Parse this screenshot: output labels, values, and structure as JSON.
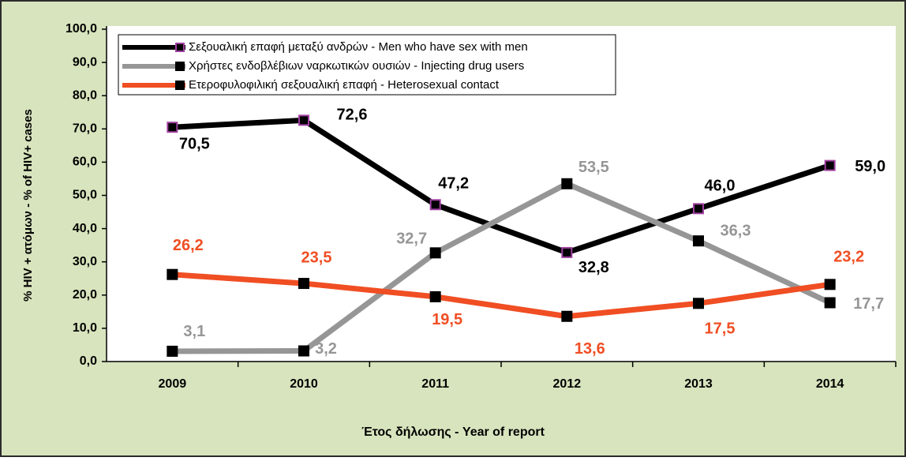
{
  "chart_data": {
    "type": "line",
    "ylabel": "% HIV + ατόμων  -  % of HIV+ cases",
    "xlabel": "Έτος δήλωσης - Year of report",
    "categories": [
      "2009",
      "2010",
      "2011",
      "2012",
      "2013",
      "2014"
    ],
    "series": [
      {
        "name": "Σεξουαλική επαφή μεταξύ ανδρών - Men who have sex with men",
        "color": "#000000",
        "marker_edge": "#a040a0",
        "values": [
          70.5,
          72.6,
          47.2,
          32.8,
          46.0,
          59.0
        ],
        "value_labels": [
          "70,5",
          "72,6",
          "47,2",
          "32,8",
          "46,0",
          "59,0"
        ]
      },
      {
        "name": "Χρήστες ενδοβλέβιων ναρκωτικών ουσιών - Injecting drug users",
        "color": "#969696",
        "marker_edge": "#000000",
        "values": [
          3.1,
          3.2,
          32.7,
          53.5,
          36.3,
          17.7
        ],
        "value_labels": [
          "3,1",
          "3,2",
          "32,7",
          "53,5",
          "36,3",
          "17,7"
        ]
      },
      {
        "name": "Ετεροφυλοφιλική σεξουαλική επαφή - Heterosexual contact",
        "color": "#f04e23",
        "marker_edge": "#000000",
        "values": [
          26.2,
          23.5,
          19.5,
          13.6,
          17.5,
          23.2
        ],
        "value_labels": [
          "26,2",
          "23,5",
          "19,5",
          "13,6",
          "17,5",
          "23,2"
        ]
      }
    ],
    "ylim": [
      0,
      100
    ],
    "yticks": [
      {
        "value": 0,
        "label": "0,0"
      },
      {
        "value": 10,
        "label": "10,0"
      },
      {
        "value": 20,
        "label": "20,0"
      },
      {
        "value": 30,
        "label": "30,0"
      },
      {
        "value": 40,
        "label": "40,0"
      },
      {
        "value": 50,
        "label": "50,0"
      },
      {
        "value": 60,
        "label": "60,0"
      },
      {
        "value": 70,
        "label": "70,0"
      },
      {
        "value": 80,
        "label": "80,0"
      },
      {
        "value": 90,
        "label": "90,0"
      },
      {
        "value": 100,
        "label": "100,0"
      }
    ],
    "legend": "upper left",
    "grid": false
  }
}
